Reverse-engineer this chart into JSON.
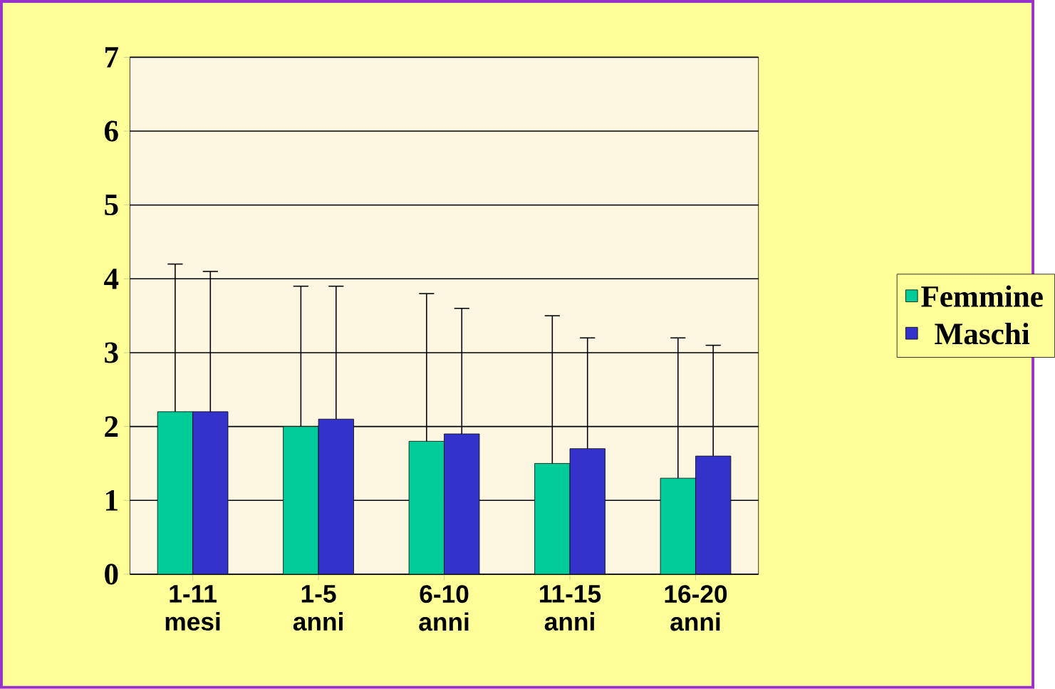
{
  "chart_data": {
    "type": "bar",
    "categories": [
      "1-11 mesi",
      "1-5 anni",
      "6-10 anni",
      "11-15 anni",
      "16-20 anni"
    ],
    "series": [
      {
        "name": "Femmine",
        "color": "#00cc99",
        "values": [
          2.2,
          2.0,
          1.8,
          1.5,
          1.3
        ],
        "errors": [
          [
            2.2,
            4.2
          ],
          [
            2.0,
            3.9
          ],
          [
            1.8,
            3.8
          ],
          [
            1.5,
            3.5
          ],
          [
            1.3,
            3.2
          ]
        ]
      },
      {
        "name": "Maschi",
        "color": "#3333cc",
        "values": [
          2.2,
          2.1,
          1.9,
          1.7,
          1.6
        ],
        "errors": [
          [
            2.2,
            4.1
          ],
          [
            2.1,
            3.9
          ],
          [
            1.9,
            3.6
          ],
          [
            1.7,
            3.2
          ],
          [
            1.6,
            3.1
          ]
        ]
      }
    ],
    "ylim": [
      0,
      7
    ],
    "yticks": [
      0,
      1,
      2,
      3,
      4,
      5,
      6,
      7
    ],
    "grid": "y",
    "legend": "right"
  }
}
